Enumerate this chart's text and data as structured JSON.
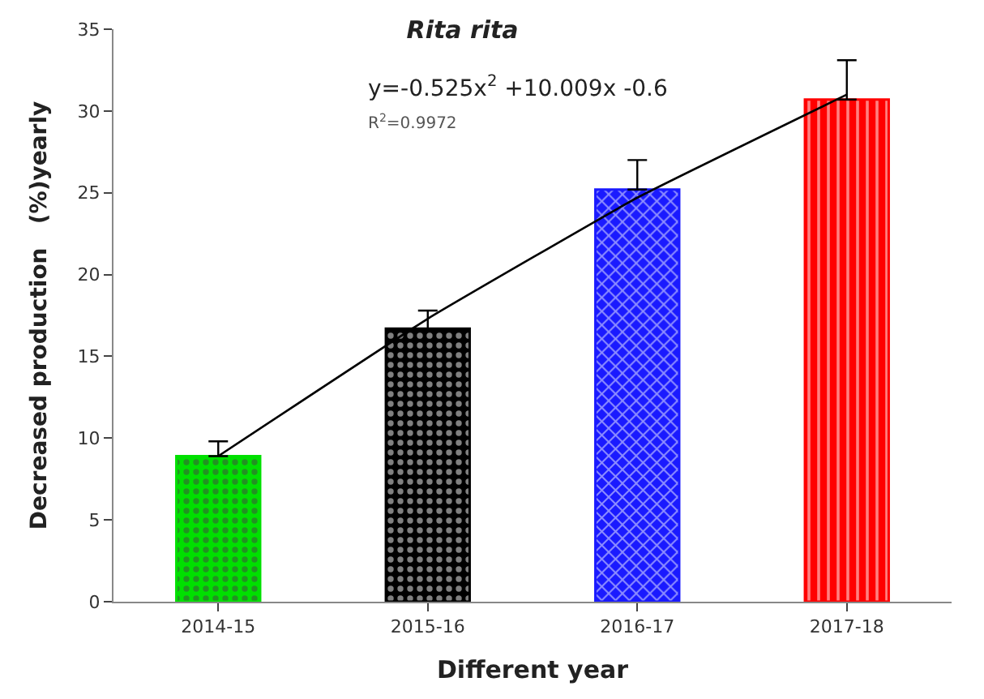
{
  "chart_data": {
    "type": "bar",
    "title": "Rita rita",
    "xlabel": "Different year",
    "ylabel": "Decreased production   (%)yearly",
    "categories": [
      "2014-15",
      "2015-16",
      "2016-17",
      "2017-18"
    ],
    "series": [
      {
        "colors": [
          "#00e000",
          "#000000",
          "#1a1aff",
          "#ff0000"
        ],
        "values": [
          8.9,
          16.7,
          25.2,
          30.7
        ],
        "errors": [
          [
            8.9,
            9.8
          ],
          [
            16.7,
            17.8
          ],
          [
            25.2,
            27.0
          ],
          [
            30.7,
            33.1
          ]
        ]
      },
      {
        "type": "line",
        "color": "#000000",
        "values": [
          8.9,
          17.3,
          24.7,
          31.0
        ],
        "marker": "none"
      }
    ],
    "annotations": [
      "y=-0.525x$^{2}$ +10.009x -0.6",
      "R$^{2}$=0.9972"
    ],
    "ylim": [
      0,
      35
    ],
    "yticks": [
      0,
      5,
      10,
      15,
      20,
      25,
      30,
      35
    ]
  }
}
